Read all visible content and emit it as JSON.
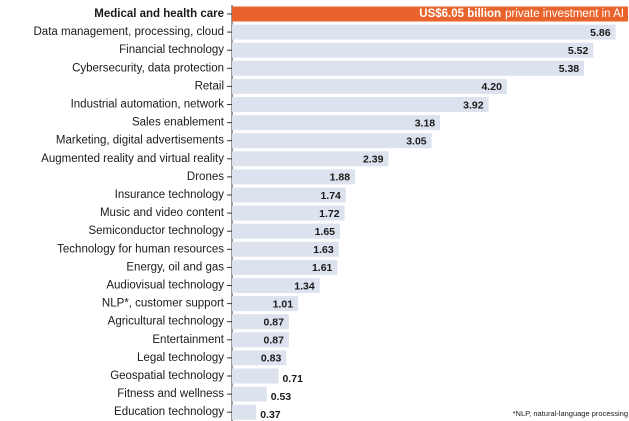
{
  "chart_data": {
    "type": "barh",
    "categories": [
      "Medical and health care",
      "Data management, processing, cloud",
      "Financial technology",
      "Cybersecurity, data protection",
      "Retail",
      "Industrial automation, network",
      "Sales enablement",
      "Marketing, digital advertisements",
      "Augmented reality and virtual reality",
      "Drones",
      "Insurance technology",
      "Music and video content",
      "Semiconductor technology",
      "Technology for human resources",
      "Energy, oil and gas",
      "Audiovisual technology",
      "NLP*, customer support",
      "Agricultural technology",
      "Entertainment",
      "Legal technology",
      "Geospatial technology",
      "Fitness and wellness",
      "Education technology"
    ],
    "values": [
      6.05,
      5.86,
      5.52,
      5.38,
      4.2,
      3.92,
      3.18,
      3.05,
      2.39,
      1.88,
      1.74,
      1.72,
      1.65,
      1.63,
      1.61,
      1.34,
      1.01,
      0.87,
      0.87,
      0.83,
      0.71,
      0.53,
      0.37
    ],
    "value_labels": [
      "US$6.05 billion",
      "5.86",
      "5.52",
      "5.38",
      "4.20",
      "3.92",
      "3.18",
      "3.05",
      "2.39",
      "1.88",
      "1.74",
      "1.72",
      "1.65",
      "1.63",
      "1.61",
      "1.34",
      "1.01",
      "0.87",
      "0.87",
      "0.83",
      "0.71",
      "0.53",
      "0.37"
    ],
    "annotation": "private investment in AI",
    "colors": [
      "#e8642c",
      "#dce3ee",
      "#dce3ee",
      "#dce3ee",
      "#dce3ee",
      "#dce3ee",
      "#dce3ee",
      "#dce3ee",
      "#dce3ee",
      "#dce3ee",
      "#dce3ee",
      "#dce3ee",
      "#dce3ee",
      "#dce3ee",
      "#dce3ee",
      "#dce3ee",
      "#dce3ee",
      "#dce3ee",
      "#dce3ee",
      "#dce3ee",
      "#dce3ee",
      "#dce3ee",
      "#dce3ee"
    ],
    "xlim": [
      0,
      6.05
    ],
    "footnote": "*NLP, natural-language processing"
  }
}
